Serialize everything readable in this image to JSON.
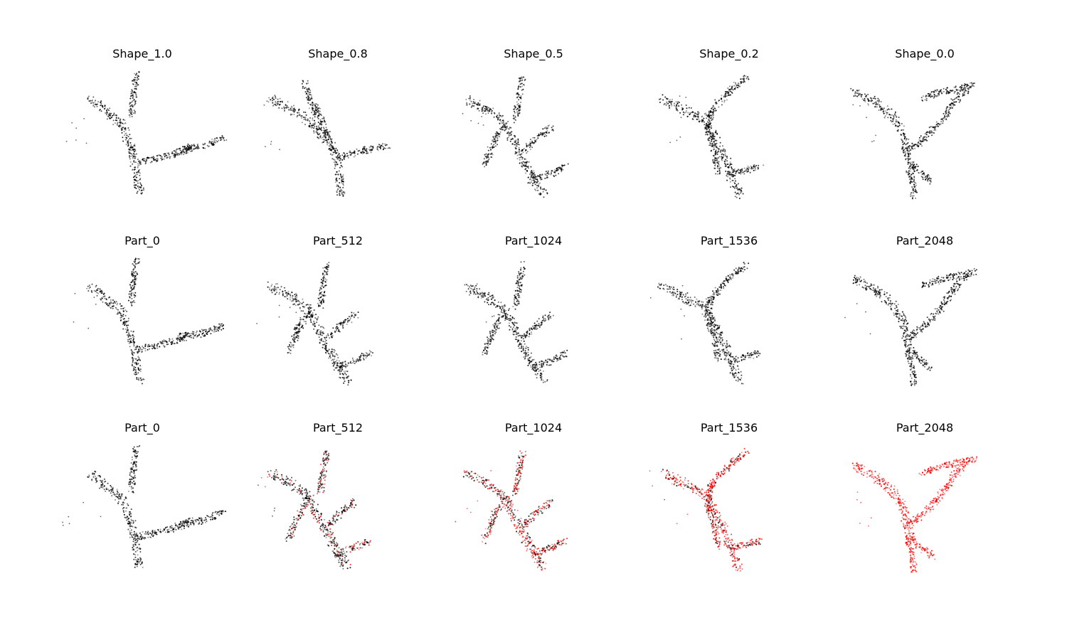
{
  "figure": {
    "rows": [
      {
        "panels": [
          {
            "title": "Shape_1.0",
            "shape": "A",
            "red_fraction": 0
          },
          {
            "title": "Shape_0.8",
            "shape": "B",
            "red_fraction": 0
          },
          {
            "title": "Shape_0.5",
            "shape": "C",
            "red_fraction": 0
          },
          {
            "title": "Shape_0.2",
            "shape": "D",
            "red_fraction": 0
          },
          {
            "title": "Shape_0.0",
            "shape": "E",
            "red_fraction": 0
          }
        ]
      },
      {
        "panels": [
          {
            "title": "Part_0",
            "shape": "A",
            "red_fraction": 0
          },
          {
            "title": "Part_512",
            "shape": "C",
            "red_fraction": 0
          },
          {
            "title": "Part_1024",
            "shape": "C",
            "red_fraction": 0
          },
          {
            "title": "Part_1536",
            "shape": "D",
            "red_fraction": 0
          },
          {
            "title": "Part_2048",
            "shape": "E",
            "red_fraction": 0
          }
        ]
      },
      {
        "panels": [
          {
            "title": "Part_0",
            "shape": "A",
            "red_fraction": 0
          },
          {
            "title": "Part_512",
            "shape": "C",
            "red_fraction": 0.25
          },
          {
            "title": "Part_1024",
            "shape": "C",
            "red_fraction": 0.5
          },
          {
            "title": "Part_1536",
            "shape": "D",
            "red_fraction": 0.75
          },
          {
            "title": "Part_2048",
            "shape": "E",
            "red_fraction": 1.0
          }
        ]
      }
    ],
    "colors": {
      "base_points": "#000000",
      "highlight_points": "#ff0000",
      "title_text": "#000000",
      "background": "#ffffff"
    }
  }
}
